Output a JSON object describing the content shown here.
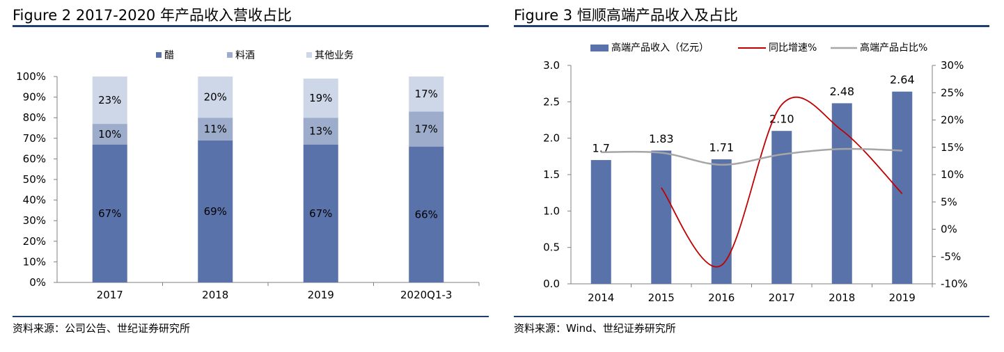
{
  "colors": {
    "vinegar": "#5a72aa",
    "wine": "#9cacca",
    "other": "#cdd7e8",
    "revenue_bar": "#5a72aa",
    "yoy_line": "#c00000",
    "share_line": "#a6a6a6",
    "rule": "#1f3d6e"
  },
  "figure2": {
    "title": "Figure 2 2017-2020 年产品收入营收占比",
    "source": "资料来源：公司公告、世纪证券研究所",
    "chart_data": {
      "type": "bar",
      "stacked": true,
      "categories": [
        "2017",
        "2018",
        "2019",
        "2020Q1-3"
      ],
      "series": [
        {
          "name": "醋",
          "values": [
            67,
            69,
            67,
            66
          ],
          "labels": [
            "67%",
            "69%",
            "67%",
            "66%"
          ]
        },
        {
          "name": "料酒",
          "values": [
            10,
            11,
            13,
            17
          ],
          "labels": [
            "10%",
            "11%",
            "13%",
            "17%"
          ]
        },
        {
          "name": "其他业务",
          "values": [
            23,
            20,
            19,
            17
          ],
          "labels": [
            "23%",
            "20%",
            "19%",
            "17%"
          ]
        }
      ],
      "ylim": [
        0,
        100
      ],
      "yticks": [
        "0%",
        "10%",
        "20%",
        "30%",
        "40%",
        "50%",
        "60%",
        "70%",
        "80%",
        "90%",
        "100%"
      ],
      "legend_position": "top",
      "grid": false
    }
  },
  "figure3": {
    "title": "Figure 3  恒顺高端产品收入及占比",
    "source": "资料来源：Wind、世纪证券研究所",
    "chart_data": {
      "type": "bar",
      "categories": [
        "2014",
        "2015",
        "2016",
        "2017",
        "2018",
        "2019"
      ],
      "series": [
        {
          "name": "高端产品收入（亿元）",
          "type": "bar",
          "axis": "left",
          "values": [
            1.7,
            1.83,
            1.71,
            2.1,
            2.48,
            2.64
          ],
          "labels": [
            "1.7",
            "1.83",
            "1.71",
            "2.10",
            "2.48",
            "2.64"
          ]
        },
        {
          "name": "同比增速%",
          "type": "line",
          "axis": "right",
          "values": [
            null,
            7.6,
            -6.6,
            22.8,
            18.1,
            6.5
          ]
        },
        {
          "name": "高端产品占比%",
          "type": "line",
          "axis": "right",
          "values": [
            14.1,
            14.0,
            11.8,
            13.7,
            14.7,
            14.4
          ]
        }
      ],
      "ylim_left": [
        0,
        3.0
      ],
      "yticks_left": [
        "0.0",
        "0.5",
        "1.0",
        "1.5",
        "2.0",
        "2.5",
        "3.0"
      ],
      "ylim_right": [
        -10,
        30
      ],
      "yticks_right": [
        "-10%",
        "-5%",
        "0%",
        "5%",
        "10%",
        "15%",
        "20%",
        "25%",
        "30%"
      ],
      "legend_position": "top",
      "grid": false
    }
  }
}
